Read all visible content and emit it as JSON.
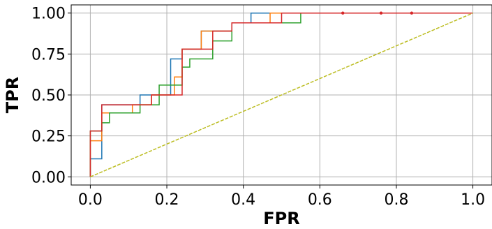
{
  "chart_data": {
    "type": "line",
    "xlabel": "FPR",
    "ylabel": "TPR",
    "xlim": [
      -0.05,
      1.05
    ],
    "ylim": [
      -0.05,
      1.05
    ],
    "xticks": [
      "0.0",
      "0.2",
      "0.4",
      "0.6",
      "0.8",
      "1.0"
    ],
    "yticks": [
      "0.00",
      "0.25",
      "0.50",
      "0.75",
      "1.00"
    ],
    "grid": true,
    "legend": "none",
    "series": [
      {
        "color": "#1f77b4",
        "step": true,
        "x": [
          0.0,
          0.0,
          0.03,
          0.03,
          0.13,
          0.13,
          0.21,
          0.21,
          0.24,
          0.24,
          0.29,
          0.29,
          0.37,
          0.37,
          0.42,
          0.42,
          0.66,
          0.76,
          0.84,
          1.0
        ],
        "y": [
          0.0,
          0.11,
          0.11,
          0.44,
          0.44,
          0.5,
          0.5,
          0.72,
          0.72,
          0.78,
          0.78,
          0.89,
          0.89,
          0.94,
          0.94,
          1.0,
          1.0,
          1.0,
          1.0,
          1.0
        ]
      },
      {
        "color": "#ff7f0e",
        "step": true,
        "x": [
          0.0,
          0.0,
          0.03,
          0.03,
          0.11,
          0.11,
          0.16,
          0.16,
          0.22,
          0.22,
          0.24,
          0.24,
          0.29,
          0.29,
          0.37,
          0.37,
          0.47,
          0.47,
          0.66,
          1.0
        ],
        "y": [
          0.0,
          0.22,
          0.22,
          0.39,
          0.39,
          0.44,
          0.44,
          0.5,
          0.5,
          0.61,
          0.61,
          0.78,
          0.78,
          0.89,
          0.89,
          0.94,
          0.94,
          1.0,
          1.0,
          1.0
        ]
      },
      {
        "color": "#2ca02c",
        "step": true,
        "x": [
          0.0,
          0.0,
          0.03,
          0.03,
          0.05,
          0.05,
          0.13,
          0.13,
          0.18,
          0.18,
          0.24,
          0.24,
          0.26,
          0.26,
          0.32,
          0.32,
          0.37,
          0.37,
          0.55,
          0.55,
          1.0
        ],
        "y": [
          0.0,
          0.28,
          0.28,
          0.33,
          0.33,
          0.39,
          0.39,
          0.44,
          0.44,
          0.56,
          0.56,
          0.67,
          0.67,
          0.72,
          0.72,
          0.83,
          0.83,
          0.94,
          0.94,
          1.0,
          1.0
        ]
      },
      {
        "color": "#d62728",
        "step": true,
        "x": [
          0.0,
          0.0,
          0.03,
          0.03,
          0.16,
          0.16,
          0.24,
          0.24,
          0.32,
          0.32,
          0.37,
          0.37,
          0.5,
          0.5,
          0.66,
          0.76,
          0.84,
          1.0
        ],
        "y": [
          0.0,
          0.28,
          0.28,
          0.44,
          0.44,
          0.5,
          0.5,
          0.78,
          0.78,
          0.89,
          0.89,
          0.94,
          0.94,
          1.0,
          1.0,
          1.0,
          1.0,
          1.0
        ]
      },
      {
        "color": "#bcbd22",
        "dashed": true,
        "x": [
          0.0,
          1.0
        ],
        "y": [
          0.0,
          1.0
        ]
      }
    ],
    "markers": {
      "color": "#d62728",
      "x": [
        0.66,
        0.76,
        0.84
      ],
      "y": [
        1.0,
        1.0,
        1.0
      ]
    }
  }
}
